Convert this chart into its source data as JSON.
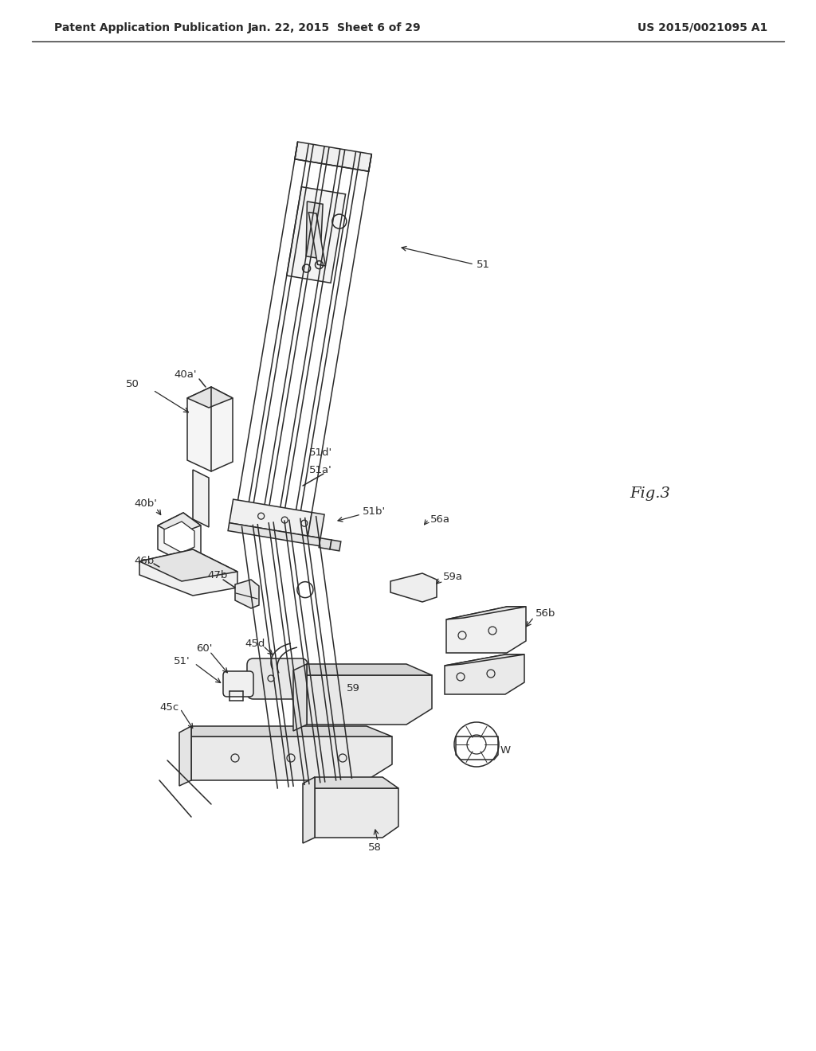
{
  "bg_color": "#ffffff",
  "line_color": "#2a2a2a",
  "header_left": "Patent Application Publication",
  "header_center": "Jan. 22, 2015  Sheet 6 of 29",
  "header_right": "US 2015/0021095 A1",
  "fig_label": "Fig.3",
  "header_fontsize": 10,
  "label_fontsize": 9.5,
  "figlabel_fontsize": 14
}
